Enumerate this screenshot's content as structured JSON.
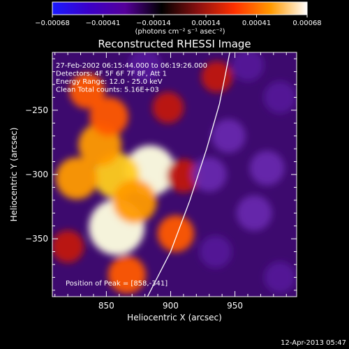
{
  "chart_data": {
    "type": "heatmap",
    "title": "Reconstructed RHESSI Image",
    "xlabel": "Heliocentric X (arcsec)",
    "ylabel": "Heliocentric Y (arcsec)",
    "xlim": [
      808,
      998
    ],
    "ylim": [
      -395,
      -205
    ],
    "x_ticks": [
      850,
      900,
      950
    ],
    "x_tick_labels": [
      "850",
      "900",
      "950"
    ],
    "y_ticks": [
      -250,
      -300,
      -350
    ],
    "y_tick_labels": [
      "−250",
      "−300",
      "−350"
    ],
    "colorbar": {
      "ticks": [
        -0.00068,
        -0.00041,
        -0.00014,
        0.00014,
        0.00041,
        0.00068
      ],
      "tick_labels": [
        "−0.00068",
        "−0.00041",
        "−0.00014",
        "0.00014",
        "0.00041",
        "0.00068"
      ],
      "unit_label": "(photons cm⁻² s⁻¹ asec⁻²)",
      "range": [
        -0.00068,
        0.00068
      ],
      "colormap": [
        "#1a1aff",
        "#3b00c8",
        "#55009a",
        "#000000",
        "#8a1010",
        "#ff3000",
        "#ff9a00",
        "#ffffff"
      ]
    },
    "annotations": [
      "27-Feb-2002 06:15:44.000 to 06:19:26.000",
      "Detectors: 4F 5F 6F 7F 8F, Att 1",
      "Energy Range: 12.0 - 25.0 keV",
      "Clean     Total counts: 5.16E+03"
    ],
    "peak_label": "Position of Peak = [858,-341]",
    "peak": [
      858,
      -341
    ],
    "sources": [
      {
        "x": 858,
        "y": -341,
        "intensity": 0.00068
      },
      {
        "x": 884,
        "y": -297,
        "intensity": 0.00058
      },
      {
        "x": 858,
        "y": -301,
        "intensity": 0.0005
      },
      {
        "x": 872,
        "y": -321,
        "intensity": 0.00046
      },
      {
        "x": 845,
        "y": -277,
        "intensity": 0.00044
      },
      {
        "x": 835,
        "y": -235,
        "intensity": 0.0003
      },
      {
        "x": 827,
        "y": -303,
        "intensity": 0.00042
      },
      {
        "x": 852,
        "y": -255,
        "intensity": 0.00036
      },
      {
        "x": 904,
        "y": -346,
        "intensity": 0.00032
      },
      {
        "x": 910,
        "y": -301,
        "intensity": 0.00026
      },
      {
        "x": 898,
        "y": -248,
        "intensity": 0.00022
      },
      {
        "x": 866,
        "y": -378,
        "intensity": 0.00034
      },
      {
        "x": 820,
        "y": -356,
        "intensity": 0.00024
      },
      {
        "x": 936,
        "y": -224,
        "intensity": 0.00022
      },
      {
        "x": 945,
        "y": -270,
        "intensity": -0.00014
      },
      {
        "x": 965,
        "y": -330,
        "intensity": -0.00016
      },
      {
        "x": 985,
        "y": -240,
        "intensity": -0.00012
      },
      {
        "x": 935,
        "y": -360,
        "intensity": -0.00012
      },
      {
        "x": 985,
        "y": -380,
        "intensity": -0.00011
      },
      {
        "x": 960,
        "y": -215,
        "intensity": -0.00012
      },
      {
        "x": 930,
        "y": -300,
        "intensity": -0.00015
      },
      {
        "x": 880,
        "y": -215,
        "intensity": -0.00013
      },
      {
        "x": 975,
        "y": -295,
        "intensity": -0.00015
      }
    ],
    "limb_curve": [
      [
        882,
        -395
      ],
      [
        900,
        -360
      ],
      [
        915,
        -320
      ],
      [
        928,
        -280
      ],
      [
        938,
        -245
      ],
      [
        946,
        -205
      ]
    ]
  },
  "footer": {
    "date": "12-Apr-2013 05:47"
  }
}
